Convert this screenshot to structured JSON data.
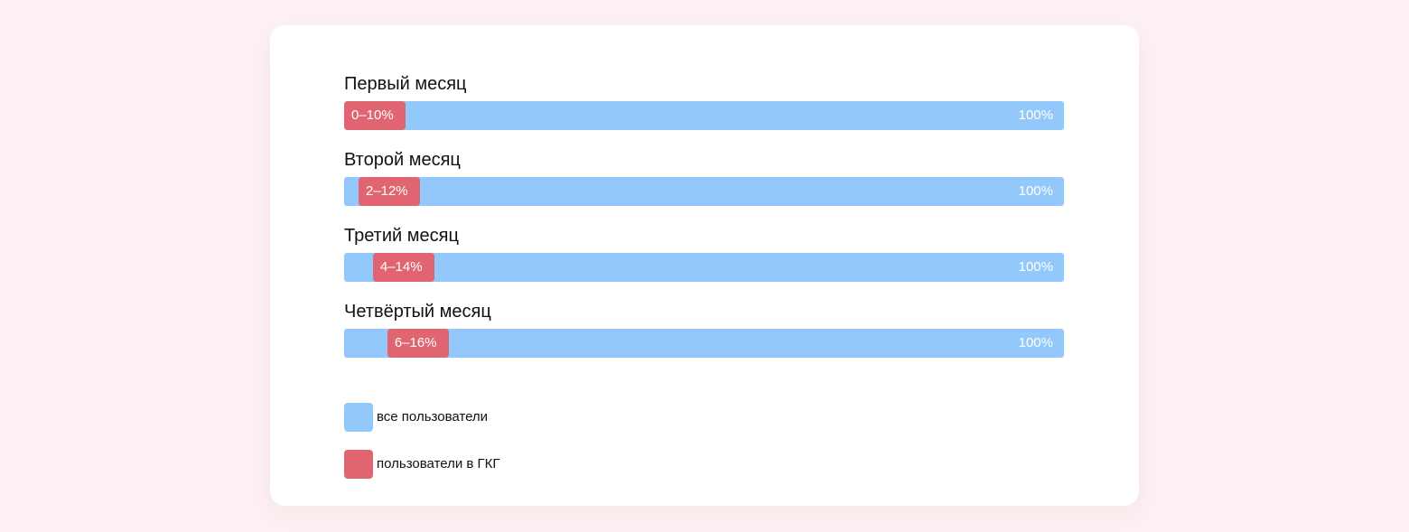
{
  "chart_data": {
    "type": "bar",
    "orientation": "horizontal",
    "categories": [
      "Первый месяц",
      "Второй месяц",
      "Третий месяц",
      "Четвёртый месяц"
    ],
    "series": [
      {
        "name": "все пользователи",
        "color": "#93c9fa",
        "values": [
          100,
          100,
          100,
          100
        ],
        "labels": [
          "100%",
          "100%",
          "100%",
          "100%"
        ]
      },
      {
        "name": "пользователи в ГКГ",
        "color": "#e06570",
        "ranges": [
          [
            0,
            10
          ],
          [
            2,
            12
          ],
          [
            4,
            14
          ],
          [
            6,
            16
          ]
        ],
        "labels": [
          "0–10%",
          "2–12%",
          "4–14%",
          "6–16%"
        ]
      }
    ],
    "xlim": [
      0,
      100
    ],
    "grid": false,
    "legend_placement": "bottom-left"
  },
  "legend": {
    "items": [
      {
        "label": "все пользователи",
        "color": "#93c9fa"
      },
      {
        "label": "пользователи в ГКГ",
        "color": "#e06570"
      }
    ]
  }
}
